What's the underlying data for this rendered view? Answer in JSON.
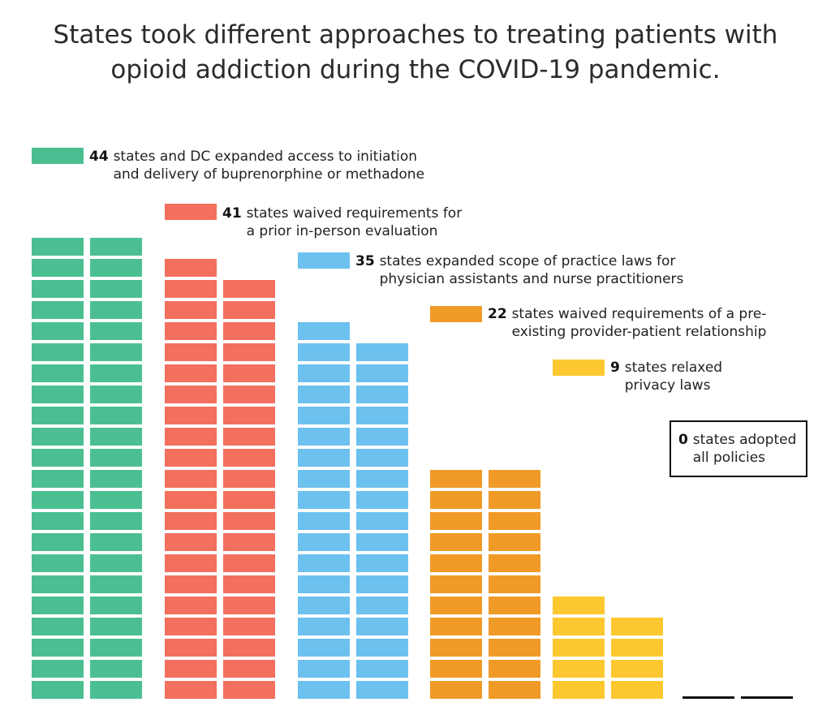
{
  "title": {
    "line1": "States took different approaches to treating patients with",
    "line2": "opioid addiction during the COVID-19 pandemic."
  },
  "chart_data": {
    "type": "bar",
    "unit_note": "each block = 1 state (or DC)",
    "series": [
      {
        "value": 44,
        "color": "#4cbf92",
        "label_lines": [
          "states and DC expanded access to initiation",
          "and delivery of buprenorphine or methadone"
        ]
      },
      {
        "value": 41,
        "color": "#f2705d",
        "label_lines": [
          "states waived requirements for",
          "a prior in-person evaluation"
        ]
      },
      {
        "value": 35,
        "color": "#6cc1ee",
        "label_lines": [
          "states expanded scope of practice laws for",
          "physician assistants and nurse practitioners"
        ]
      },
      {
        "value": 22,
        "color": "#f09a27",
        "label_lines": [
          "states waived requirements of a pre-",
          "existing provider-patient relationship"
        ]
      },
      {
        "value": 9,
        "color": "#fdc82f",
        "label_lines": [
          "states relaxed",
          "privacy laws"
        ]
      },
      {
        "value": 0,
        "color": "#111111",
        "label_lines": [
          "states adopted",
          "all policies"
        ]
      }
    ]
  }
}
